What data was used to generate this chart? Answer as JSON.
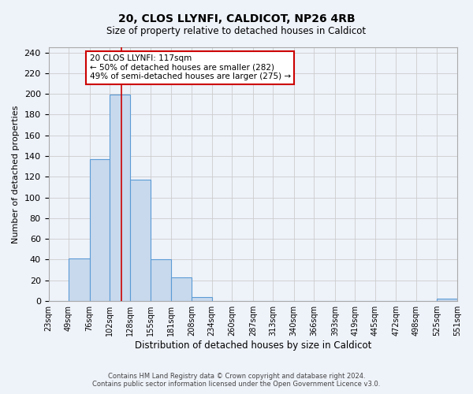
{
  "title": "20, CLOS LLYNFI, CALDICOT, NP26 4RB",
  "subtitle": "Size of property relative to detached houses in Caldicot",
  "xlabel": "Distribution of detached houses by size in Caldicot",
  "ylabel": "Number of detached properties",
  "bin_labels": [
    "23sqm",
    "49sqm",
    "76sqm",
    "102sqm",
    "128sqm",
    "155sqm",
    "181sqm",
    "208sqm",
    "234sqm",
    "260sqm",
    "287sqm",
    "313sqm",
    "340sqm",
    "366sqm",
    "393sqm",
    "419sqm",
    "445sqm",
    "472sqm",
    "498sqm",
    "525sqm",
    "551sqm"
  ],
  "bin_edges": [
    23,
    49,
    76,
    102,
    128,
    155,
    181,
    208,
    234,
    260,
    287,
    313,
    340,
    366,
    393,
    419,
    445,
    472,
    498,
    525,
    551
  ],
  "bar_heights": [
    0,
    41,
    137,
    199,
    117,
    40,
    23,
    4,
    0,
    0,
    0,
    0,
    0,
    0,
    0,
    0,
    0,
    0,
    0,
    2
  ],
  "bar_color": "#c8d9ed",
  "bar_edge_color": "#5b9bd5",
  "property_line_x": 117,
  "property_line_color": "#cc0000",
  "annotation_line1": "20 CLOS LLYNFI: 117sqm",
  "annotation_line2": "← 50% of detached houses are smaller (282)",
  "annotation_line3": "49% of semi-detached houses are larger (275) →",
  "annotation_box_color": "#cc0000",
  "ylim": [
    0,
    245
  ],
  "yticks": [
    0,
    20,
    40,
    60,
    80,
    100,
    120,
    140,
    160,
    180,
    200,
    220,
    240
  ],
  "grid_color": "#cccccc",
  "background_color": "#eef2f9",
  "footer_line1": "Contains HM Land Registry data © Crown copyright and database right 2024.",
  "footer_line2": "Contains public sector information licensed under the Open Government Licence v3.0."
}
